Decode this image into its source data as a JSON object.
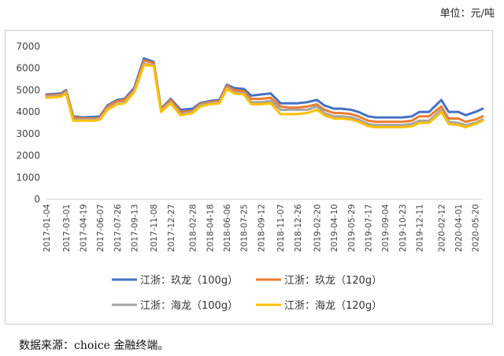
{
  "unit_label": "单位：元/吨",
  "source_label": "数据来源：choice 金融终端。",
  "chart_data": {
    "type": "line",
    "title": "",
    "xlabel": "",
    "ylabel": "",
    "ylim": [
      0,
      7000
    ],
    "yticks": [
      0,
      1000,
      2000,
      3000,
      4000,
      5000,
      6000,
      7000
    ],
    "grid": false,
    "legend_position": "bottom",
    "x_tick_labels": [
      "2017-01-04",
      "2017-03-01",
      "2017-04-19",
      "2017-06-07",
      "2017-07-26",
      "2017-09-13",
      "2017-11-08",
      "2017-12-27",
      "2018-02-28",
      "2018-04-18",
      "2018-06-06",
      "2018-07-25",
      "2018-09-12",
      "2018-11-07",
      "2018-12-26",
      "2019-02-20",
      "2019-04-10",
      "2019-05-29",
      "2019-07-17",
      "2019-09-04",
      "2019-10-23",
      "2019-12-11",
      "2020-02-12",
      "2020-04-01",
      "2020-05-20"
    ],
    "x": [
      "2017-01-04",
      "2017-02-15",
      "2017-03-01",
      "2017-03-22",
      "2017-04-19",
      "2017-05-24",
      "2017-06-07",
      "2017-06-28",
      "2017-07-26",
      "2017-08-16",
      "2017-09-13",
      "2017-10-11",
      "2017-11-08",
      "2017-11-29",
      "2017-12-27",
      "2018-01-24",
      "2018-02-28",
      "2018-03-21",
      "2018-04-18",
      "2018-05-16",
      "2018-06-06",
      "2018-06-27",
      "2018-07-25",
      "2018-08-15",
      "2018-09-12",
      "2018-10-10",
      "2018-11-07",
      "2018-12-05",
      "2018-12-26",
      "2019-01-23",
      "2019-02-20",
      "2019-03-13",
      "2019-04-10",
      "2019-05-01",
      "2019-05-29",
      "2019-06-19",
      "2019-07-17",
      "2019-08-07",
      "2019-09-04",
      "2019-10-02",
      "2019-10-23",
      "2019-11-20",
      "2019-12-11",
      "2020-01-08",
      "2020-02-12",
      "2020-03-04",
      "2020-04-01",
      "2020-04-22",
      "2020-05-20",
      "2020-06-10"
    ],
    "series": [
      {
        "name": "江浙：玖龙（100g）",
        "color": "#4472C4",
        "values": [
          4800,
          4850,
          5000,
          3800,
          3750,
          3780,
          3800,
          4300,
          4550,
          4600,
          5100,
          6450,
          6300,
          4150,
          4600,
          4100,
          4150,
          4400,
          4500,
          4550,
          5250,
          5100,
          5050,
          4750,
          4800,
          4850,
          4400,
          4400,
          4400,
          4450,
          4550,
          4300,
          4150,
          4150,
          4100,
          4000,
          3800,
          3750,
          3750,
          3750,
          3750,
          3800,
          4000,
          4000,
          4550,
          4000,
          4000,
          3850,
          4000,
          4150
        ]
      },
      {
        "name": "江浙：玖龙（120g）",
        "color": "#ED7D31",
        "values": [
          4750,
          4800,
          4950,
          3750,
          3700,
          3700,
          3750,
          4250,
          4500,
          4550,
          5000,
          6350,
          6250,
          4100,
          4550,
          4000,
          4050,
          4350,
          4450,
          4500,
          5200,
          5000,
          4950,
          4600,
          4600,
          4650,
          4250,
          4200,
          4200,
          4250,
          4350,
          4100,
          3950,
          3950,
          3900,
          3800,
          3600,
          3550,
          3550,
          3550,
          3550,
          3600,
          3800,
          3800,
          4250,
          3700,
          3700,
          3550,
          3650,
          3800
        ]
      },
      {
        "name": "江浙：海龙（100g）",
        "color": "#A5A5A5",
        "values": [
          4700,
          4750,
          4900,
          3650,
          3650,
          3650,
          3700,
          4150,
          4400,
          4450,
          4950,
          6200,
          6150,
          4050,
          4450,
          3900,
          4000,
          4300,
          4400,
          4450,
          5100,
          4900,
          4850,
          4450,
          4450,
          4500,
          4100,
          4100,
          4100,
          4100,
          4250,
          3950,
          3800,
          3800,
          3750,
          3650,
          3450,
          3400,
          3400,
          3400,
          3400,
          3450,
          3600,
          3600,
          4100,
          3550,
          3500,
          3400,
          3500,
          3650
        ]
      },
      {
        "name": "江浙：海龙（120g）",
        "color": "#FFC000",
        "values": [
          4650,
          4700,
          4850,
          3600,
          3600,
          3600,
          3650,
          4100,
          4350,
          4400,
          4900,
          6150,
          6100,
          4000,
          4400,
          3850,
          3950,
          4250,
          4350,
          4400,
          5050,
          4850,
          4800,
          4350,
          4350,
          4400,
          3900,
          3900,
          3900,
          3950,
          4100,
          3850,
          3700,
          3700,
          3650,
          3550,
          3350,
          3300,
          3300,
          3300,
          3300,
          3350,
          3500,
          3500,
          4000,
          3450,
          3400,
          3300,
          3450,
          3600
        ]
      }
    ]
  }
}
